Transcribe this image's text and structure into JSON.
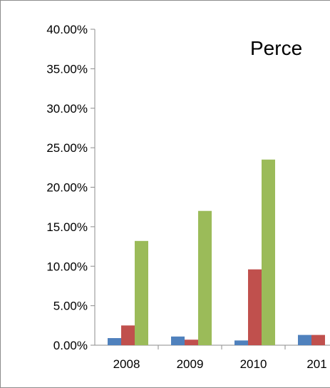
{
  "chart_data": {
    "type": "bar",
    "title": "Perce",
    "xlabel": "",
    "ylabel": "",
    "categories": [
      "2008",
      "2009",
      "2010",
      "201"
    ],
    "ylim": [
      0,
      40
    ],
    "ytick_step": 5,
    "ytick_labels": [
      "0.00%",
      "5.00%",
      "10.00%",
      "15.00%",
      "20.00%",
      "25.00%",
      "30.00%",
      "35.00%",
      "40.00%"
    ],
    "grid": false,
    "legend": "none",
    "series": [
      {
        "color": "#4f81bd",
        "values": [
          0.9,
          1.1,
          0.6,
          1.3
        ]
      },
      {
        "color": "#c0504d",
        "values": [
          2.5,
          0.7,
          9.6,
          1.3
        ]
      },
      {
        "color": "#9bbb59",
        "values": [
          13.2,
          17.0,
          23.5,
          null
        ]
      }
    ]
  }
}
